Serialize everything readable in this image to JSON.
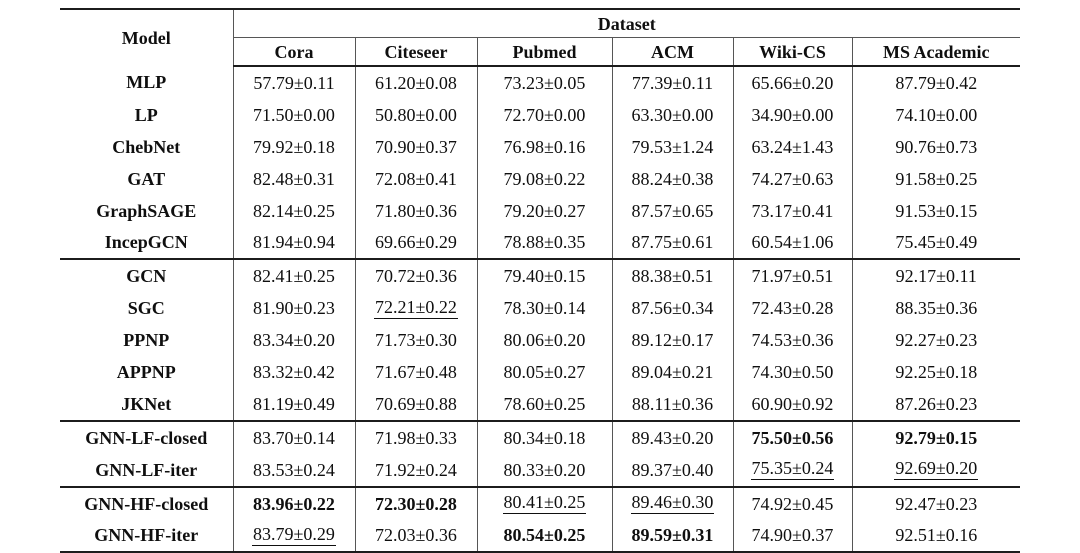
{
  "table": {
    "header": {
      "model_label": "Model",
      "dataset_label": "Dataset",
      "columns": [
        "Cora",
        "Citeseer",
        "Pubmed",
        "ACM",
        "Wiki-CS",
        "MS Academic"
      ]
    },
    "sections": [
      {
        "rows": [
          {
            "model": "MLP",
            "cells": [
              "57.79±0.11",
              "61.20±0.08",
              "73.23±0.05",
              "77.39±0.11",
              "65.66±0.20",
              "87.79±0.42"
            ]
          },
          {
            "model": "LP",
            "cells": [
              "71.50±0.00",
              "50.80±0.00",
              "72.70±0.00",
              "63.30±0.00",
              "34.90±0.00",
              "74.10±0.00"
            ]
          },
          {
            "model": "ChebNet",
            "cells": [
              "79.92±0.18",
              "70.90±0.37",
              "76.98±0.16",
              "79.53±1.24",
              "63.24±1.43",
              "90.76±0.73"
            ]
          },
          {
            "model": "GAT",
            "cells": [
              "82.48±0.31",
              "72.08±0.41",
              "79.08±0.22",
              "88.24±0.38",
              "74.27±0.63",
              "91.58±0.25"
            ]
          },
          {
            "model": "GraphSAGE",
            "cells": [
              "82.14±0.25",
              "71.80±0.36",
              "79.20±0.27",
              "87.57±0.65",
              "73.17±0.41",
              "91.53±0.15"
            ]
          },
          {
            "model": "IncepGCN",
            "cells": [
              "81.94±0.94",
              "69.66±0.29",
              "78.88±0.35",
              "87.75±0.61",
              "60.54±1.06",
              "75.45±0.49"
            ]
          }
        ]
      },
      {
        "rows": [
          {
            "model": "GCN",
            "cells": [
              "82.41±0.25",
              "70.72±0.36",
              "79.40±0.15",
              "88.38±0.51",
              "71.97±0.51",
              "92.17±0.11"
            ]
          },
          {
            "model": "SGC",
            "cells": [
              "81.90±0.23",
              {
                "text": "72.21±0.22",
                "style": "underline"
              },
              "78.30±0.14",
              "87.56±0.34",
              "72.43±0.28",
              "88.35±0.36"
            ]
          },
          {
            "model": "PPNP",
            "cells": [
              "83.34±0.20",
              "71.73±0.30",
              "80.06±0.20",
              "89.12±0.17",
              "74.53±0.36",
              "92.27±0.23"
            ]
          },
          {
            "model": "APPNP",
            "cells": [
              "83.32±0.42",
              "71.67±0.48",
              "80.05±0.27",
              "89.04±0.21",
              "74.30±0.50",
              "92.25±0.18"
            ]
          },
          {
            "model": "JKNet",
            "cells": [
              "81.19±0.49",
              "70.69±0.88",
              "78.60±0.25",
              "88.11±0.36",
              "60.90±0.92",
              "87.26±0.23"
            ]
          }
        ]
      },
      {
        "rows": [
          {
            "model": "GNN-LF-closed",
            "cells": [
              "83.70±0.14",
              "71.98±0.33",
              "80.34±0.18",
              "89.43±0.20",
              {
                "text": "75.50±0.56",
                "style": "bold"
              },
              {
                "text": "92.79±0.15",
                "style": "bold"
              }
            ]
          },
          {
            "model": "GNN-LF-iter",
            "cells": [
              "83.53±0.24",
              "71.92±0.24",
              "80.33±0.20",
              "89.37±0.40",
              {
                "text": "75.35±0.24",
                "style": "underline"
              },
              {
                "text": "92.69±0.20",
                "style": "underline"
              }
            ]
          }
        ]
      },
      {
        "rows": [
          {
            "model": "GNN-HF-closed",
            "cells": [
              {
                "text": "83.96±0.22",
                "style": "bold"
              },
              {
                "text": "72.30±0.28",
                "style": "bold"
              },
              {
                "text": "80.41±0.25",
                "style": "underline"
              },
              {
                "text": "89.46±0.30",
                "style": "underline"
              },
              "74.92±0.45",
              "92.47±0.23"
            ]
          },
          {
            "model": "GNN-HF-iter",
            "cells": [
              {
                "text": "83.79±0.29",
                "style": "underline"
              },
              "72.03±0.36",
              {
                "text": "80.54±0.25",
                "style": "bold"
              },
              {
                "text": "89.59±0.31",
                "style": "bold"
              },
              "74.90±0.37",
              "92.51±0.16"
            ]
          }
        ]
      }
    ],
    "colors": {
      "rule_dark": "#1c1c1c",
      "rule_gray": "#565656",
      "text": "#0f0f0f",
      "background": "#ffffff"
    }
  }
}
